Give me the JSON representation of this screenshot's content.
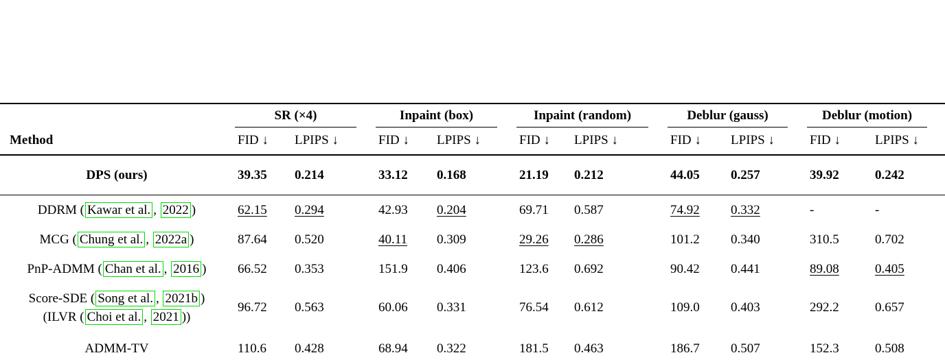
{
  "page": {
    "background": "#ffffff"
  },
  "table": {
    "method_header": "Method",
    "sub_fid": "FID ↓",
    "sub_lpips": "LPIPS ↓",
    "citation_box_color": "#00dd00",
    "groups": [
      "SR (×4)",
      "Inpaint (box)",
      "Inpaint (random)",
      "Deblur (gauss)",
      "Deblur (motion)"
    ],
    "rows": [
      {
        "method_lines": [
          [
            {
              "t": "DPS (ours)"
            }
          ]
        ],
        "row_style": "bold",
        "separator_after": true,
        "cells": [
          {
            "v": "39.35",
            "s": "b"
          },
          {
            "v": "0.214",
            "s": "b"
          },
          {
            "v": "33.12",
            "s": "b"
          },
          {
            "v": "0.168",
            "s": "b"
          },
          {
            "v": "21.19",
            "s": "b"
          },
          {
            "v": "0.212",
            "s": "b"
          },
          {
            "v": "44.05",
            "s": "b"
          },
          {
            "v": "0.257",
            "s": "b"
          },
          {
            "v": "39.92",
            "s": "b"
          },
          {
            "v": "0.242",
            "s": "b"
          }
        ]
      },
      {
        "method_lines": [
          [
            {
              "t": "DDRM ("
            },
            {
              "t": "Kawar et al.",
              "box": true
            },
            {
              "t": ", "
            },
            {
              "t": "2022",
              "box": true
            },
            {
              "t": ")"
            }
          ]
        ],
        "cells": [
          {
            "v": "62.15",
            "s": "u"
          },
          {
            "v": "0.294",
            "s": "u"
          },
          {
            "v": "42.93"
          },
          {
            "v": "0.204",
            "s": "u"
          },
          {
            "v": "69.71"
          },
          {
            "v": "0.587"
          },
          {
            "v": "74.92",
            "s": "u"
          },
          {
            "v": "0.332",
            "s": "u"
          },
          {
            "v": "-"
          },
          {
            "v": "-"
          }
        ]
      },
      {
        "method_lines": [
          [
            {
              "t": "MCG ("
            },
            {
              "t": "Chung et al.",
              "box": true
            },
            {
              "t": ", "
            },
            {
              "t": "2022a",
              "box": true
            },
            {
              "t": ")"
            }
          ]
        ],
        "cells": [
          {
            "v": "87.64"
          },
          {
            "v": "0.520"
          },
          {
            "v": "40.11",
            "s": "u"
          },
          {
            "v": "0.309"
          },
          {
            "v": "29.26",
            "s": "u"
          },
          {
            "v": "0.286",
            "s": "u"
          },
          {
            "v": "101.2"
          },
          {
            "v": "0.340"
          },
          {
            "v": "310.5"
          },
          {
            "v": "0.702"
          }
        ]
      },
      {
        "method_lines": [
          [
            {
              "t": "PnP-ADMM ("
            },
            {
              "t": "Chan et al.",
              "box": true
            },
            {
              "t": ", "
            },
            {
              "t": "2016",
              "box": true
            },
            {
              "t": ")"
            }
          ]
        ],
        "cells": [
          {
            "v": "66.52"
          },
          {
            "v": "0.353"
          },
          {
            "v": "151.9"
          },
          {
            "v": "0.406"
          },
          {
            "v": "123.6"
          },
          {
            "v": "0.692"
          },
          {
            "v": "90.42"
          },
          {
            "v": "0.441"
          },
          {
            "v": "89.08",
            "s": "u"
          },
          {
            "v": "0.405",
            "s": "u"
          }
        ]
      },
      {
        "method_lines": [
          [
            {
              "t": "Score-SDE ("
            },
            {
              "t": "Song et al.",
              "box": true
            },
            {
              "t": ", "
            },
            {
              "t": "2021b",
              "box": true
            },
            {
              "t": ")"
            }
          ],
          [
            {
              "t": "(ILVR ("
            },
            {
              "t": "Choi et al.",
              "box": true
            },
            {
              "t": ", "
            },
            {
              "t": "2021",
              "box": true
            },
            {
              "t": "))"
            }
          ]
        ],
        "cells": [
          {
            "v": "96.72"
          },
          {
            "v": "0.563"
          },
          {
            "v": "60.06"
          },
          {
            "v": "0.331"
          },
          {
            "v": "76.54"
          },
          {
            "v": "0.612"
          },
          {
            "v": "109.0"
          },
          {
            "v": "0.403"
          },
          {
            "v": "292.2"
          },
          {
            "v": "0.657"
          }
        ]
      },
      {
        "method_lines": [
          [
            {
              "t": "ADMM-TV"
            }
          ]
        ],
        "last": true,
        "cells": [
          {
            "v": "110.6"
          },
          {
            "v": "0.428"
          },
          {
            "v": "68.94"
          },
          {
            "v": "0.322"
          },
          {
            "v": "181.5"
          },
          {
            "v": "0.463"
          },
          {
            "v": "186.7"
          },
          {
            "v": "0.507"
          },
          {
            "v": "152.3"
          },
          {
            "v": "0.508"
          }
        ]
      }
    ]
  }
}
